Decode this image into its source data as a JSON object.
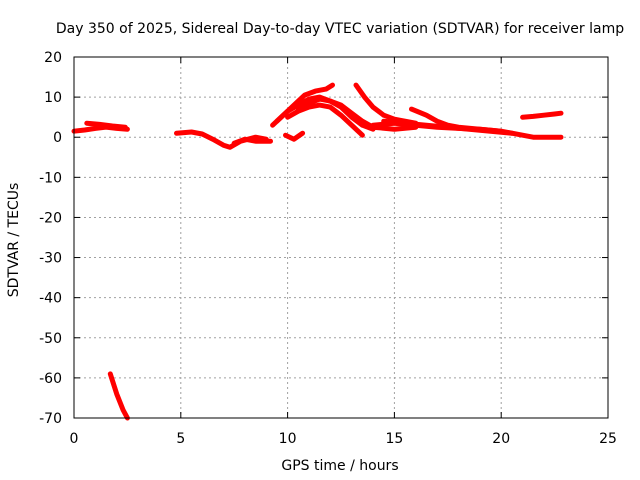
{
  "chart_data": {
    "type": "line",
    "title": "Day 350 of 2025, Sidereal Day-to-day VTEC variation (SDTVAR) for receiver lamp",
    "xlabel": "GPS time / hours",
    "ylabel": "SDTVAR / TECUs",
    "xlim": [
      0,
      25
    ],
    "ylim": [
      -70,
      20
    ],
    "xticks": [
      0,
      5,
      10,
      15,
      20,
      25
    ],
    "yticks": [
      -70,
      -60,
      -50,
      -40,
      -30,
      -20,
      -10,
      0,
      10,
      20
    ],
    "grid": true,
    "legend": "none",
    "series_color": "#ff0000",
    "series": [
      {
        "name": "seg-early-a",
        "x": [
          0.0,
          0.5,
          1.0,
          1.5,
          2.0,
          2.5
        ],
        "y": [
          1.5,
          1.8,
          2.2,
          2.5,
          2.2,
          2.0
        ]
      },
      {
        "name": "seg-early-b",
        "x": [
          0.6,
          1.2,
          1.8,
          2.4
        ],
        "y": [
          3.5,
          3.2,
          2.8,
          2.5
        ]
      },
      {
        "name": "seg-drop",
        "x": [
          1.7,
          2.0,
          2.3,
          2.5
        ],
        "y": [
          -59,
          -64,
          -68,
          -70
        ]
      },
      {
        "name": "seg-mid-a",
        "x": [
          4.8,
          5.5,
          6.0,
          6.5,
          7.0,
          7.3,
          7.8,
          8.5,
          9.0
        ],
        "y": [
          1.0,
          1.3,
          0.8,
          -0.5,
          -2.0,
          -2.5,
          -1.0,
          0.0,
          -0.5
        ]
      },
      {
        "name": "seg-mid-b",
        "x": [
          7.5,
          8.0,
          8.5,
          9.2
        ],
        "y": [
          -1.5,
          -0.5,
          -1.0,
          -1.0
        ]
      },
      {
        "name": "seg-rise-a",
        "x": [
          9.3,
          9.8,
          10.3,
          10.8,
          11.3,
          11.8,
          12.1
        ],
        "y": [
          3.0,
          5.5,
          8.0,
          10.5,
          11.5,
          12.0,
          13.0
        ]
      },
      {
        "name": "seg-rise-b",
        "x": [
          9.5,
          10.0,
          10.5,
          11.0,
          11.5,
          12.0,
          12.5,
          13.0,
          13.5,
          14.0,
          15.0,
          16.0
        ],
        "y": [
          4.0,
          6.5,
          8.0,
          9.5,
          10.0,
          9.0,
          8.0,
          6.0,
          4.0,
          2.5,
          2.0,
          2.5
        ]
      },
      {
        "name": "seg-rise-c",
        "x": [
          10.0,
          10.5,
          11.0,
          11.5,
          12.0,
          12.5,
          13.0,
          13.5
        ],
        "y": [
          5.0,
          6.5,
          7.5,
          8.0,
          7.5,
          5.5,
          3.0,
          0.5
        ]
      },
      {
        "name": "seg-rise-d",
        "x": [
          10.5,
          11.0,
          11.5,
          12.0,
          12.5,
          13.0,
          13.5,
          14.0
        ],
        "y": [
          7.0,
          8.5,
          9.5,
          9.0,
          7.5,
          5.0,
          3.0,
          2.0
        ]
      },
      {
        "name": "seg-small",
        "x": [
          9.9,
          10.3,
          10.7
        ],
        "y": [
          0.5,
          -0.5,
          1.0
        ]
      },
      {
        "name": "seg-late-a",
        "x": [
          13.2,
          13.6,
          14.0,
          14.5,
          15.0,
          15.5,
          16.0
        ],
        "y": [
          13.0,
          10.0,
          7.5,
          5.5,
          4.5,
          4.0,
          3.5
        ]
      },
      {
        "name": "seg-late-b",
        "x": [
          14.0,
          15.0,
          16.0,
          17.0,
          18.0,
          19.0,
          20.0,
          21.0,
          21.5,
          22.0,
          22.8
        ],
        "y": [
          3.0,
          3.5,
          3.0,
          2.5,
          2.2,
          2.0,
          1.5,
          0.5,
          0.0,
          0.0,
          0.0
        ]
      },
      {
        "name": "seg-late-c",
        "x": [
          15.8,
          16.5,
          17.0,
          17.5,
          18.0,
          19.0,
          20.0
        ],
        "y": [
          7.0,
          5.5,
          4.0,
          3.0,
          2.5,
          2.0,
          1.5
        ]
      },
      {
        "name": "seg-late-d",
        "x": [
          14.5,
          15.5,
          16.5,
          17.5,
          18.5,
          19.5,
          20.5
        ],
        "y": [
          4.0,
          3.5,
          3.0,
          2.5,
          2.0,
          1.5,
          1.0
        ]
      },
      {
        "name": "seg-end",
        "x": [
          21.0,
          21.5,
          22.0,
          22.5,
          22.8
        ],
        "y": [
          5.0,
          5.2,
          5.5,
          5.8,
          6.0
        ]
      }
    ]
  }
}
